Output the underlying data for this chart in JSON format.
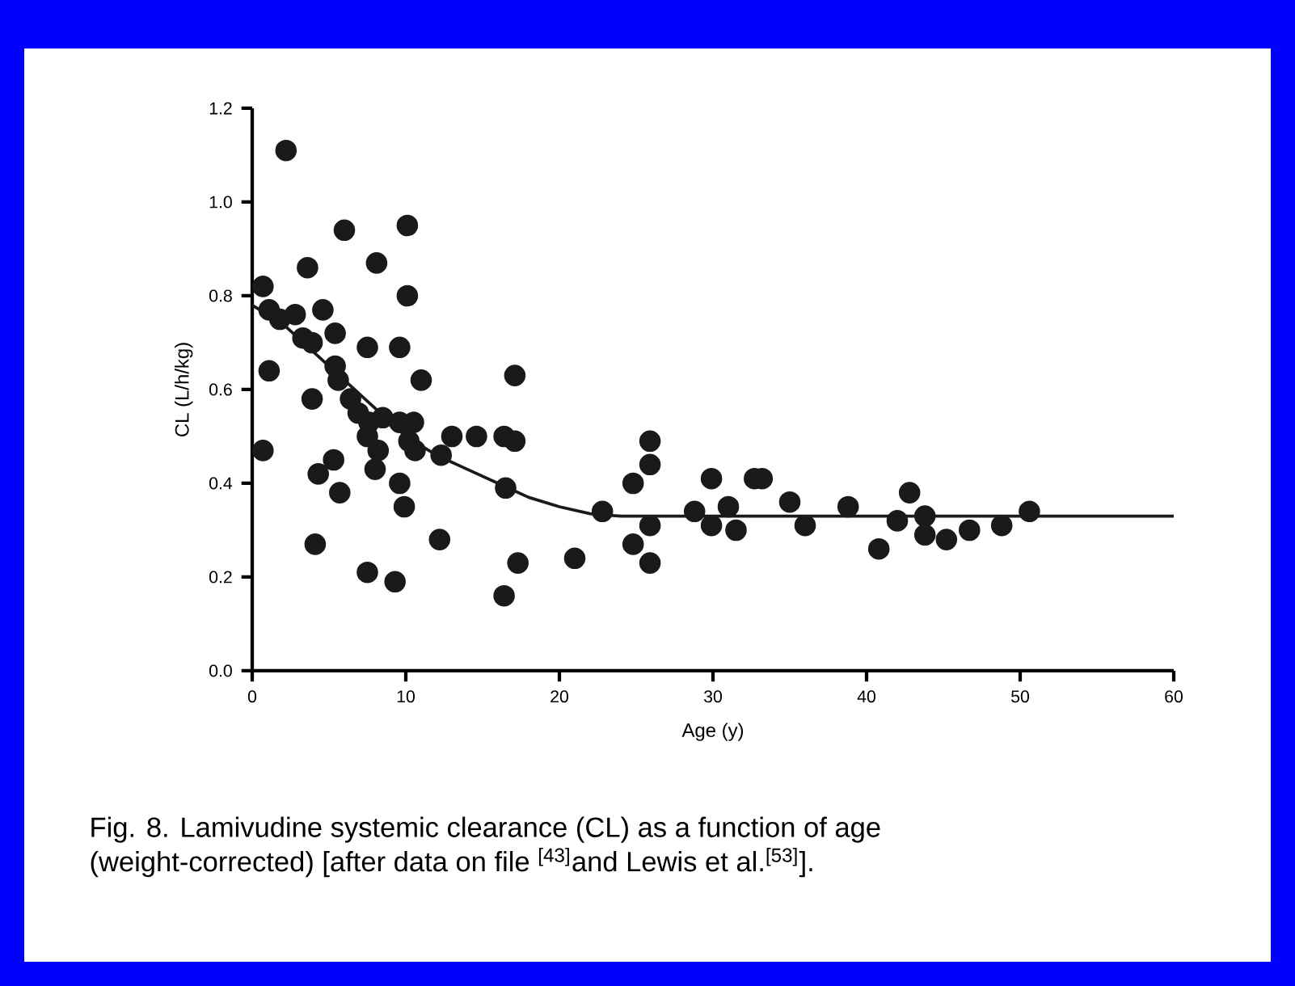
{
  "chart_data": {
    "type": "scatter",
    "xlabel": "Age (y)",
    "ylabel": "CL (L/h/kg)",
    "xlim": [
      0,
      60
    ],
    "xticks": [
      0,
      10,
      20,
      30,
      40,
      50,
      60
    ],
    "ylim": [
      0,
      1.2
    ],
    "yticks": [
      {
        "value": 0,
        "label": "0.0"
      },
      {
        "value": 0.2,
        "label": "0.2"
      },
      {
        "value": 0.4,
        "label": "0.4"
      },
      {
        "value": 0.6,
        "label": "0.6"
      },
      {
        "value": 0.8,
        "label": "0.8"
      },
      {
        "value": 1,
        "label": "1.0"
      },
      {
        "value": 1.2,
        "label": "1.2"
      }
    ],
    "series": [
      {
        "marker": "circle",
        "color": "#1a1a1a",
        "x": [
          2.2,
          6,
          10.1,
          8.1,
          3.6,
          10.1,
          0.7,
          1.1,
          0.7,
          3.9,
          9.6,
          7.5,
          11,
          4.3,
          5.7,
          5.3,
          4.1,
          7.5,
          9.3,
          12.2,
          9.9,
          9.6,
          8,
          8.2,
          16.4,
          16.5,
          14.6,
          13,
          12.3,
          10.6,
          10.5,
          1.1,
          1.8,
          2.8,
          4.6,
          3.3,
          3.9,
          5.4,
          5.4,
          5.6,
          6.4,
          6.9,
          7.6,
          8.5,
          7.5,
          9.6,
          10.2,
          17.1,
          17.3,
          17.1,
          16.4,
          21,
          22.8,
          25.9,
          25.9,
          24.8,
          25.9,
          24.8,
          25.9,
          29.9,
          32.7,
          28.8,
          29.9,
          31,
          31.5,
          33.2,
          35,
          36,
          38.8,
          40.8,
          42,
          42.8,
          43.8,
          43.8,
          45.2,
          46.7,
          48.8,
          50.6
        ],
        "values": [
          1.11,
          0.94,
          0.95,
          0.87,
          0.86,
          0.8,
          0.82,
          0.64,
          0.47,
          0.58,
          0.69,
          0.69,
          0.62,
          0.42,
          0.38,
          0.45,
          0.27,
          0.21,
          0.19,
          0.28,
          0.35,
          0.4,
          0.43,
          0.47,
          0.5,
          0.39,
          0.5,
          0.5,
          0.46,
          0.47,
          0.53,
          0.77,
          0.75,
          0.76,
          0.77,
          0.71,
          0.7,
          0.72,
          0.65,
          0.62,
          0.58,
          0.55,
          0.53,
          0.54,
          0.5,
          0.53,
          0.49,
          0.63,
          0.23,
          0.49,
          0.16,
          0.24,
          0.34,
          0.49,
          0.44,
          0.4,
          0.31,
          0.27,
          0.23,
          0.41,
          0.41,
          0.34,
          0.31,
          0.35,
          0.3,
          0.41,
          0.36,
          0.31,
          0.35,
          0.26,
          0.32,
          0.38,
          0.33,
          0.29,
          0.28,
          0.3,
          0.31,
          0.34
        ]
      },
      {
        "type": "line",
        "marker": "none",
        "color": "#1a1a1a",
        "x": [
          0,
          2,
          4,
          6,
          8,
          10,
          12,
          14,
          16,
          18,
          20,
          22,
          24,
          60
        ],
        "values": [
          0.78,
          0.74,
          0.68,
          0.62,
          0.56,
          0.5,
          0.46,
          0.43,
          0.4,
          0.37,
          0.35,
          0.335,
          0.33,
          0.33
        ]
      }
    ],
    "annotations": [
      "Fig. 8. Lamivudine systemic clearance (CL) as a function of age (weight-corrected) [after data on file $^{[43]}$and Lewis et al.$^{[53]}$]."
    ]
  }
}
